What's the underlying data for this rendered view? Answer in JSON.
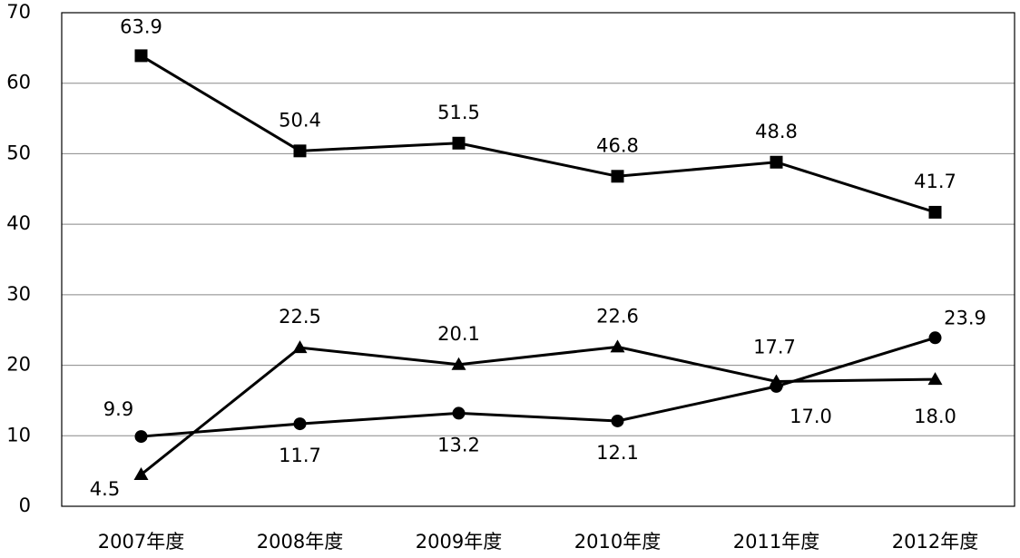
{
  "chart_data": {
    "type": "line",
    "categories": [
      "2007年度",
      "2008年度",
      "2009年度",
      "2010年度",
      "2011年度",
      "2012年度"
    ],
    "series": [
      {
        "marker": "square",
        "color": "#000000",
        "values": [
          63.9,
          50.4,
          51.5,
          46.8,
          48.8,
          41.7
        ],
        "value_labels": [
          "63.9",
          "50.4",
          "51.5",
          "46.8",
          "48.8",
          "41.7"
        ]
      },
      {
        "marker": "triangle",
        "color": "#000000",
        "values": [
          4.5,
          22.5,
          20.1,
          22.6,
          17.7,
          18.0
        ],
        "value_labels": [
          "4.5",
          "22.5",
          "20.1",
          "22.6",
          "17.7",
          "18.0"
        ]
      },
      {
        "marker": "circle",
        "color": "#000000",
        "values": [
          9.9,
          11.7,
          13.2,
          12.1,
          17.0,
          23.9
        ],
        "value_labels": [
          "9.9",
          "11.7",
          "13.2",
          "12.1",
          "17.0",
          "23.9"
        ]
      }
    ],
    "ylim": [
      0,
      70
    ],
    "yticks": [
      0,
      10,
      20,
      30,
      40,
      50,
      60,
      70
    ],
    "grid": true
  }
}
